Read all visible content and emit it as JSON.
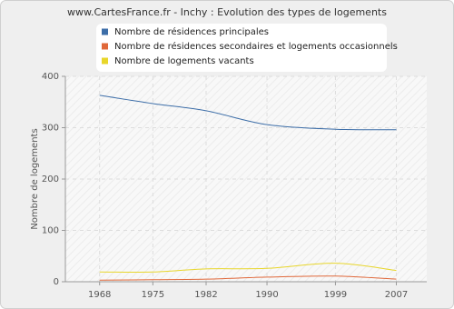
{
  "chart_data": {
    "type": "line",
    "title": "www.CartesFrance.fr - Inchy : Evolution des types de logements",
    "y_label": "Nombre de logements",
    "x": [
      1968,
      1975,
      1982,
      1990,
      1999,
      2007
    ],
    "series": [
      {
        "name": "Nombre de résidences principales",
        "color": "#3d6ea8",
        "values": [
          363,
          347,
          333,
          306,
          297,
          296
        ]
      },
      {
        "name": "Nombre de résidences secondaires et logements occasionnels",
        "color": "#e0683a",
        "values": [
          3,
          4,
          5,
          9,
          11,
          5
        ]
      },
      {
        "name": "Nombre de logements vacants",
        "color": "#e8d62a",
        "values": [
          19,
          19,
          25,
          26,
          36,
          22
        ]
      }
    ],
    "xlim": [
      1963.5,
      2011
    ],
    "xticks": [
      1968,
      1975,
      1982,
      1990,
      1999,
      2007
    ],
    "ylim": [
      0,
      400
    ],
    "yticks": [
      0,
      100,
      200,
      300,
      400
    ],
    "grid": true
  }
}
